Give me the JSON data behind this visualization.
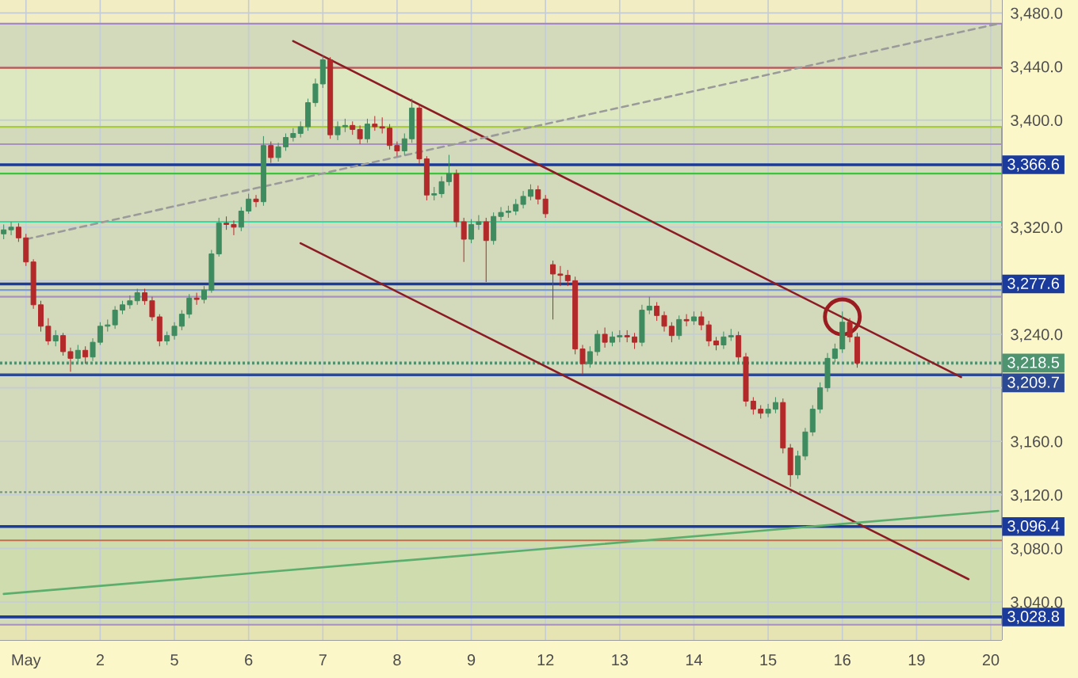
{
  "chart_data": {
    "type": "candlestick",
    "categories": [
      null,
      null,
      null,
      "May",
      null,
      null,
      null,
      null,
      null,
      null,
      null,
      null,
      null,
      "2",
      null,
      null,
      null,
      null,
      null,
      null,
      null,
      null,
      null,
      "5",
      null,
      null,
      null,
      null,
      null,
      null,
      null,
      null,
      null,
      "6",
      null,
      null,
      null,
      null,
      null,
      null,
      null,
      null,
      null,
      "7",
      null,
      null,
      null,
      null,
      null,
      null,
      null,
      null,
      null,
      "8",
      null,
      null,
      null,
      null,
      null,
      null,
      null,
      null,
      null,
      "9",
      null,
      null,
      null,
      null,
      null,
      null,
      null,
      null,
      null,
      "12",
      null,
      null,
      null,
      null,
      null,
      null,
      null,
      null,
      null,
      "13",
      null,
      null,
      null,
      null,
      null,
      null,
      null,
      null,
      null,
      "14",
      null,
      null,
      null,
      null,
      null,
      null,
      null,
      null,
      null,
      "15",
      null,
      null,
      null,
      null,
      null,
      null,
      null,
      null,
      null,
      "16",
      null,
      null,
      null,
      null,
      null,
      null,
      null,
      null,
      null,
      "19",
      null,
      null,
      null,
      null,
      null,
      null,
      null,
      null,
      null,
      "20",
      null
    ],
    "ohlc": [
      [
        3315,
        3322,
        3311,
        3318
      ],
      [
        3318,
        3324,
        3314,
        3320
      ],
      [
        3320,
        3323,
        3309,
        3312
      ],
      [
        3312,
        3315,
        3291,
        3294
      ],
      [
        3294,
        3296,
        3259,
        3262
      ],
      [
        3262,
        3265,
        3242,
        3246
      ],
      [
        3246,
        3252,
        3232,
        3235
      ],
      [
        3235,
        3243,
        3231,
        3239
      ],
      [
        3239,
        3241,
        3224,
        3227
      ],
      [
        3227,
        3230,
        3212,
        3222
      ],
      [
        3222,
        3232,
        3219,
        3228
      ],
      [
        3228,
        3231,
        3218,
        3223
      ],
      [
        3223,
        3237,
        3220,
        3234
      ],
      [
        3234,
        3249,
        3232,
        3246
      ],
      [
        3246,
        3251,
        3242,
        3247
      ],
      [
        3247,
        3261,
        3244,
        3258
      ],
      [
        3258,
        3265,
        3255,
        3262
      ],
      [
        3262,
        3269,
        3259,
        3265
      ],
      [
        3265,
        3274,
        3262,
        3271
      ],
      [
        3271,
        3274,
        3262,
        3265
      ],
      [
        3265,
        3268,
        3250,
        3253
      ],
      [
        3253,
        3255,
        3231,
        3235
      ],
      [
        3235,
        3242,
        3232,
        3239
      ],
      [
        3239,
        3249,
        3236,
        3246
      ],
      [
        3246,
        3258,
        3243,
        3255
      ],
      [
        3255,
        3270,
        3252,
        3267
      ],
      [
        3267,
        3271,
        3262,
        3266
      ],
      [
        3266,
        3276,
        3263,
        3273
      ],
      [
        3273,
        3303,
        3271,
        3300
      ],
      [
        3300,
        3327,
        3298,
        3323
      ],
      [
        3323,
        3328,
        3318,
        3322
      ],
      [
        3322,
        3325,
        3314,
        3320
      ],
      [
        3320,
        3335,
        3317,
        3332
      ],
      [
        3332,
        3345,
        3330,
        3341
      ],
      [
        3341,
        3344,
        3335,
        3339
      ],
      [
        3339,
        3388,
        3336,
        3381
      ],
      [
        3381,
        3384,
        3368,
        3372
      ],
      [
        3372,
        3383,
        3369,
        3380
      ],
      [
        3380,
        3390,
        3377,
        3387
      ],
      [
        3387,
        3394,
        3384,
        3390
      ],
      [
        3390,
        3399,
        3387,
        3395
      ],
      [
        3395,
        3416,
        3392,
        3413
      ],
      [
        3413,
        3431,
        3410,
        3427
      ],
      [
        3427,
        3448,
        3424,
        3445
      ],
      [
        3445,
        3447,
        3386,
        3389
      ],
      [
        3389,
        3399,
        3385,
        3395
      ],
      [
        3395,
        3401,
        3391,
        3396
      ],
      [
        3396,
        3399,
        3389,
        3393
      ],
      [
        3393,
        3396,
        3382,
        3386
      ],
      [
        3386,
        3401,
        3383,
        3397
      ],
      [
        3397,
        3403,
        3392,
        3395
      ],
      [
        3395,
        3402,
        3390,
        3394
      ],
      [
        3394,
        3397,
        3378,
        3381
      ],
      [
        3381,
        3384,
        3373,
        3377
      ],
      [
        3377,
        3390,
        3374,
        3386
      ],
      [
        3386,
        3416,
        3383,
        3409
      ],
      [
        3409,
        3412,
        3367,
        3371
      ],
      [
        3371,
        3373,
        3340,
        3344
      ],
      [
        3344,
        3350,
        3340,
        3345
      ],
      [
        3345,
        3358,
        3342,
        3354
      ],
      [
        3354,
        3374,
        3351,
        3360
      ],
      [
        3360,
        3363,
        3320,
        3324
      ],
      [
        3324,
        3327,
        3294,
        3311
      ],
      [
        3311,
        3326,
        3308,
        3322
      ],
      [
        3322,
        3329,
        3318,
        3324
      ],
      [
        3324,
        3327,
        3279,
        3310
      ],
      [
        3310,
        3331,
        3307,
        3328
      ],
      [
        3328,
        3335,
        3325,
        3331
      ],
      [
        3331,
        3336,
        3327,
        3332
      ],
      [
        3332,
        3341,
        3329,
        3337
      ],
      [
        3337,
        3347,
        3334,
        3343
      ],
      [
        3343,
        3352,
        3340,
        3348
      ],
      [
        3348,
        3351,
        3337,
        3341
      ],
      [
        3341,
        3344,
        3327,
        3330
      ],
      [
        3292,
        3295,
        3251,
        3285
      ],
      [
        3285,
        3291,
        3276,
        3284
      ],
      [
        3284,
        3288,
        3276,
        3280
      ],
      [
        3280,
        3283,
        3225,
        3229
      ],
      [
        3229,
        3232,
        3210,
        3218
      ],
      [
        3218,
        3231,
        3215,
        3227
      ],
      [
        3227,
        3243,
        3224,
        3240
      ],
      [
        3240,
        3245,
        3230,
        3234
      ],
      [
        3234,
        3242,
        3231,
        3238
      ],
      [
        3238,
        3243,
        3234,
        3239
      ],
      [
        3239,
        3243,
        3234,
        3238
      ],
      [
        3238,
        3241,
        3229,
        3234
      ],
      [
        3234,
        3262,
        3231,
        3258
      ],
      [
        3258,
        3268,
        3255,
        3261
      ],
      [
        3261,
        3264,
        3250,
        3254
      ],
      [
        3254,
        3257,
        3242,
        3246
      ],
      [
        3246,
        3249,
        3234,
        3239
      ],
      [
        3239,
        3254,
        3236,
        3251
      ],
      [
        3251,
        3255,
        3246,
        3250
      ],
      [
        3250,
        3257,
        3247,
        3253
      ],
      [
        3253,
        3257,
        3243,
        3247
      ],
      [
        3247,
        3250,
        3231,
        3235
      ],
      [
        3235,
        3238,
        3228,
        3232
      ],
      [
        3232,
        3242,
        3229,
        3238
      ],
      [
        3238,
        3244,
        3235,
        3239
      ],
      [
        3239,
        3242,
        3219,
        3223
      ],
      [
        3223,
        3226,
        3186,
        3190
      ],
      [
        3190,
        3193,
        3180,
        3184
      ],
      [
        3184,
        3187,
        3177,
        3181
      ],
      [
        3181,
        3188,
        3178,
        3184
      ],
      [
        3184,
        3193,
        3181,
        3189
      ],
      [
        3189,
        3192,
        3151,
        3155
      ],
      [
        3155,
        3158,
        3126,
        3135
      ],
      [
        3135,
        3153,
        3132,
        3149
      ],
      [
        3149,
        3170,
        3146,
        3167
      ],
      [
        3167,
        3187,
        3164,
        3184
      ],
      [
        3184,
        3204,
        3181,
        3200
      ],
      [
        3200,
        3226,
        3197,
        3222
      ],
      [
        3222,
        3233,
        3219,
        3229
      ],
      [
        3229,
        3257,
        3226,
        3249
      ],
      [
        3249,
        3252,
        3234,
        3238
      ],
      [
        3238,
        3241,
        3215,
        3218.5
      ],
      null,
      null,
      null,
      null,
      null,
      null,
      null,
      null,
      null,
      null,
      null,
      null,
      null,
      null,
      null,
      null,
      null,
      null,
      null
    ],
    "colors": [
      "#3d8b5e",
      "#3d8b5e",
      "#b3292a",
      "#b3292a",
      "#b3292a",
      "#b3292a",
      "#b3292a",
      "#3d8b5e",
      "#b3292a",
      "#b3292a",
      "#3d8b5e",
      "#b3292a",
      "#3d8b5e",
      "#3d8b5e",
      "#3d8b5e",
      "#3d8b5e",
      "#3d8b5e",
      "#3d8b5e",
      "#3d8b5e",
      "#b3292a",
      "#b3292a",
      "#b3292a",
      "#3d8b5e",
      "#3d8b5e",
      "#3d8b5e",
      "#3d8b5e",
      "#b3292a",
      "#3d8b5e",
      "#3d8b5e",
      "#3d8b5e",
      "#b3292a",
      "#b3292a",
      "#3d8b5e",
      "#3d8b5e",
      "#b3292a",
      "#3d8b5e",
      "#b3292a",
      "#3d8b5e",
      "#3d8b5e",
      "#3d8b5e",
      "#3d8b5e",
      "#3d8b5e",
      "#3d8b5e",
      "#3d8b5e",
      "#b3292a",
      "#3d8b5e",
      "#3d8b5e",
      "#b3292a",
      "#b3292a",
      "#3d8b5e",
      "#b3292a",
      "#b3292a",
      "#b3292a",
      "#b3292a",
      "#3d8b5e",
      "#3d8b5e",
      "#b3292a",
      "#b3292a",
      "#3d8b5e",
      "#3d8b5e",
      "#3d8b5e",
      "#b3292a",
      "#b3292a",
      "#3d8b5e",
      "#3d8b5e",
      "#b3292a",
      "#3d8b5e",
      "#3d8b5e",
      "#3d8b5e",
      "#3d8b5e",
      "#3d8b5e",
      "#3d8b5e",
      "#b3292a",
      "#b3292a",
      "#b3292a",
      "#b3292a",
      "#b3292a",
      "#b3292a",
      "#b3292a",
      "#3d8b5e",
      "#3d8b5e",
      "#b3292a",
      "#3d8b5e",
      "#3d8b5e",
      "#b3292a",
      "#b3292a",
      "#3d8b5e",
      "#3d8b5e",
      "#b3292a",
      "#b3292a",
      "#b3292a",
      "#3d8b5e",
      "#b3292a",
      "#3d8b5e",
      "#b3292a",
      "#b3292a",
      "#b3292a",
      "#3d8b5e",
      "#3d8b5e",
      "#b3292a",
      "#b3292a",
      "#b3292a",
      "#b3292a",
      "#3d8b5e",
      "#3d8b5e",
      "#b3292a",
      "#b3292a",
      "#3d8b5e",
      "#3d8b5e",
      "#3d8b5e",
      "#3d8b5e",
      "#3d8b5e",
      "#3d8b5e",
      "#3d8b5e",
      "#b3292a",
      "#b3292a",
      null,
      null,
      null,
      null,
      null,
      null,
      null,
      null,
      null,
      null,
      null,
      null,
      null,
      null,
      null,
      null,
      null,
      null,
      null
    ],
    "series": [
      {
        "type": "line",
        "color": "#8b1c24",
        "values": [
          null,
          null,
          null,
          null,
          null,
          null,
          null,
          null,
          null,
          null,
          null,
          null,
          null,
          null,
          null,
          null,
          null,
          null,
          null,
          null,
          null,
          null,
          null,
          null,
          null,
          null,
          null,
          null,
          null,
          null,
          null,
          null,
          null,
          null,
          null,
          null,
          null,
          null,
          null,
          3459,
          null,
          null,
          null,
          null,
          null,
          null,
          null,
          null,
          null,
          null,
          null,
          null,
          null,
          null,
          null,
          null,
          null,
          null,
          null,
          null,
          null,
          null,
          null,
          null,
          null,
          null,
          null,
          null,
          null,
          null,
          null,
          null,
          null,
          null,
          null,
          null,
          null,
          null,
          null,
          null,
          null,
          null,
          null,
          null,
          null,
          null,
          null,
          null,
          null,
          null,
          null,
          null,
          null,
          null,
          null,
          null,
          null,
          null,
          null,
          null,
          null,
          null,
          null,
          null,
          null,
          null,
          null,
          null,
          null,
          null,
          null,
          null,
          null,
          null,
          null,
          null,
          null,
          null,
          null,
          null,
          null,
          null,
          null,
          null,
          null,
          null,
          null,
          null,
          null,
          3208,
          null,
          null,
          null,
          null,
          null
        ]
      },
      {
        "type": "line",
        "color": "#8b1c24",
        "values": [
          null,
          null,
          null,
          null,
          null,
          null,
          null,
          null,
          null,
          null,
          null,
          null,
          null,
          null,
          null,
          null,
          null,
          null,
          null,
          null,
          null,
          null,
          null,
          null,
          null,
          null,
          null,
          null,
          null,
          null,
          null,
          null,
          null,
          null,
          null,
          null,
          null,
          null,
          null,
          null,
          3308,
          null,
          null,
          null,
          null,
          null,
          null,
          null,
          null,
          null,
          null,
          null,
          null,
          null,
          null,
          null,
          null,
          null,
          null,
          null,
          null,
          null,
          null,
          null,
          null,
          null,
          null,
          null,
          null,
          null,
          null,
          null,
          null,
          null,
          null,
          null,
          null,
          null,
          null,
          null,
          null,
          null,
          null,
          null,
          null,
          null,
          null,
          null,
          null,
          null,
          null,
          null,
          null,
          null,
          null,
          null,
          null,
          null,
          null,
          null,
          null,
          null,
          null,
          null,
          null,
          null,
          null,
          null,
          null,
          null,
          null,
          null,
          null,
          null,
          null,
          null,
          null,
          null,
          null,
          null,
          null,
          null,
          null,
          null,
          null,
          null,
          null,
          null,
          null,
          null,
          3057,
          null,
          null,
          null,
          null
        ]
      },
      {
        "type": "line",
        "color": "#9a9a9a",
        "line_style": "dashed",
        "values": [
          null,
          null,
          null,
          3311,
          null,
          null,
          null,
          null,
          null,
          null,
          null,
          null,
          null,
          null,
          null,
          null,
          null,
          null,
          null,
          null,
          null,
          null,
          null,
          null,
          null,
          null,
          null,
          null,
          null,
          null,
          null,
          null,
          null,
          null,
          null,
          null,
          null,
          null,
          null,
          null,
          null,
          null,
          null,
          null,
          null,
          null,
          null,
          null,
          null,
          null,
          null,
          null,
          null,
          null,
          null,
          null,
          null,
          null,
          null,
          null,
          null,
          null,
          null,
          null,
          null,
          null,
          null,
          null,
          null,
          null,
          null,
          null,
          null,
          null,
          null,
          null,
          null,
          null,
          null,
          null,
          null,
          null,
          null,
          null,
          null,
          null,
          null,
          null,
          null,
          null,
          null,
          null,
          null,
          null,
          null,
          null,
          null,
          null,
          null,
          null,
          null,
          null,
          null,
          null,
          null,
          null,
          null,
          null,
          null,
          null,
          null,
          null,
          null,
          null,
          null,
          null,
          null,
          null,
          null,
          null,
          null,
          null,
          null,
          null,
          null,
          null,
          null,
          null,
          null,
          null,
          null,
          null,
          null,
          null,
          3472
        ]
      },
      {
        "type": "line",
        "color": "#5cae6c",
        "values": [
          3046,
          null,
          null,
          null,
          null,
          null,
          null,
          null,
          null,
          null,
          null,
          null,
          null,
          null,
          null,
          null,
          null,
          null,
          null,
          null,
          null,
          null,
          null,
          null,
          null,
          null,
          null,
          null,
          null,
          null,
          null,
          null,
          null,
          null,
          null,
          null,
          null,
          null,
          null,
          null,
          null,
          null,
          null,
          null,
          null,
          null,
          null,
          null,
          null,
          null,
          null,
          null,
          null,
          null,
          null,
          null,
          null,
          null,
          null,
          null,
          null,
          null,
          null,
          null,
          null,
          null,
          null,
          null,
          null,
          null,
          null,
          null,
          null,
          null,
          null,
          null,
          null,
          null,
          null,
          null,
          null,
          null,
          null,
          null,
          null,
          null,
          null,
          null,
          null,
          null,
          null,
          null,
          null,
          null,
          null,
          null,
          null,
          null,
          null,
          null,
          null,
          null,
          null,
          null,
          null,
          null,
          null,
          null,
          null,
          null,
          null,
          null,
          null,
          null,
          null,
          null,
          null,
          null,
          null,
          null,
          null,
          null,
          null,
          null,
          null,
          null,
          null,
          null,
          null,
          null,
          null,
          null,
          null,
          null,
          3108
        ]
      },
      {
        "type": "scatter",
        "color": "#9b1c20",
        "marker": "circle",
        "values": [
          null,
          null,
          null,
          null,
          null,
          null,
          null,
          null,
          null,
          null,
          null,
          null,
          null,
          null,
          null,
          null,
          null,
          null,
          null,
          null,
          null,
          null,
          null,
          null,
          null,
          null,
          null,
          null,
          null,
          null,
          null,
          null,
          null,
          null,
          null,
          null,
          null,
          null,
          null,
          null,
          null,
          null,
          null,
          null,
          null,
          null,
          null,
          null,
          null,
          null,
          null,
          null,
          null,
          null,
          null,
          null,
          null,
          null,
          null,
          null,
          null,
          null,
          null,
          null,
          null,
          null,
          null,
          null,
          null,
          null,
          null,
          null,
          null,
          null,
          null,
          null,
          null,
          null,
          null,
          null,
          null,
          null,
          null,
          null,
          null,
          null,
          null,
          null,
          null,
          null,
          null,
          null,
          null,
          null,
          null,
          null,
          null,
          null,
          null,
          null,
          null,
          null,
          null,
          null,
          null,
          null,
          null,
          null,
          null,
          null,
          null,
          null,
          null,
          3253,
          null,
          null,
          null,
          null,
          null,
          null,
          null,
          null,
          null,
          null,
          null,
          null,
          null,
          null,
          null,
          null,
          null,
          null,
          null,
          null,
          null
        ]
      }
    ],
    "ref_lines": [
      {
        "axis": "y",
        "value": 3472,
        "color": "#a48ac4"
      },
      {
        "axis": "y",
        "value": 3439,
        "color": "#c0504d"
      },
      {
        "axis": "y",
        "value": 3395,
        "color": "#a8cc3c"
      },
      {
        "axis": "y",
        "value": 3382,
        "color": "#a890c0"
      },
      {
        "axis": "y",
        "value": 3366.6,
        "label": "3,366.6",
        "color": "#1a3a9c"
      },
      {
        "axis": "y",
        "value": 3360,
        "color": "#3cc43c"
      },
      {
        "axis": "y",
        "value": 3324,
        "color": "#3ed6a0"
      },
      {
        "axis": "y",
        "value": 3277.6,
        "label": "3,277.6",
        "color": "#1a3a9c"
      },
      {
        "axis": "y",
        "value": 3273,
        "color": "#7a9ad0"
      },
      {
        "axis": "y",
        "value": 3268,
        "color": "#a890c0"
      },
      {
        "axis": "y",
        "value": 3218.5,
        "label": "3,218.5",
        "color": "#4f9470",
        "line_style": "dotted"
      },
      {
        "axis": "y",
        "value": 3209.7,
        "label": "3,209.7",
        "color": "#2c4a94"
      },
      {
        "axis": "y",
        "value": 3122,
        "color": "#7d957d",
        "line_style": "dotted"
      },
      {
        "axis": "y",
        "value": 3096.4,
        "label": "3,096.4",
        "color": "#1a3a9c"
      },
      {
        "axis": "y",
        "value": 3086,
        "color": "#c07050"
      },
      {
        "axis": "y",
        "value": 3028.8,
        "label": "3,028.8",
        "color": "#1a3a9c"
      },
      {
        "axis": "y",
        "value": 3023,
        "color": "#a890c0"
      }
    ],
    "bands": [
      {
        "axis": "y",
        "from": 3472,
        "to": 3489.7,
        "color": "#f3edc3"
      },
      {
        "axis": "y",
        "from": 3395,
        "to": 3439,
        "color": "#dde8c0"
      },
      {
        "axis": "y",
        "from": 3028.8,
        "to": 3096.4,
        "color": "#cfdcae"
      },
      {
        "axis": "y",
        "from": 3011.6,
        "to": 3023,
        "color": "#e6e4b2"
      }
    ],
    "ylim": [
      3011.6,
      3489.7
    ],
    "yticks": [
      {
        "value": 3040,
        "label": "3,040.0"
      },
      {
        "value": 3080,
        "label": "3,080.0"
      },
      {
        "value": 3120,
        "label": "3,120.0"
      },
      {
        "value": 3160,
        "label": "3,160.0"
      },
      {
        "value": 3200,
        "label": null
      },
      {
        "value": 3240,
        "label": "3,240.0"
      },
      {
        "value": 3280,
        "label": null
      },
      {
        "value": 3320,
        "label": "3,320.0"
      },
      {
        "value": 3360,
        "label": null
      },
      {
        "value": 3400,
        "label": "3,400.0"
      },
      {
        "value": 3440,
        "label": "3,440.0"
      },
      {
        "value": 3480,
        "label": "3,480.0"
      }
    ],
    "grid": true
  }
}
